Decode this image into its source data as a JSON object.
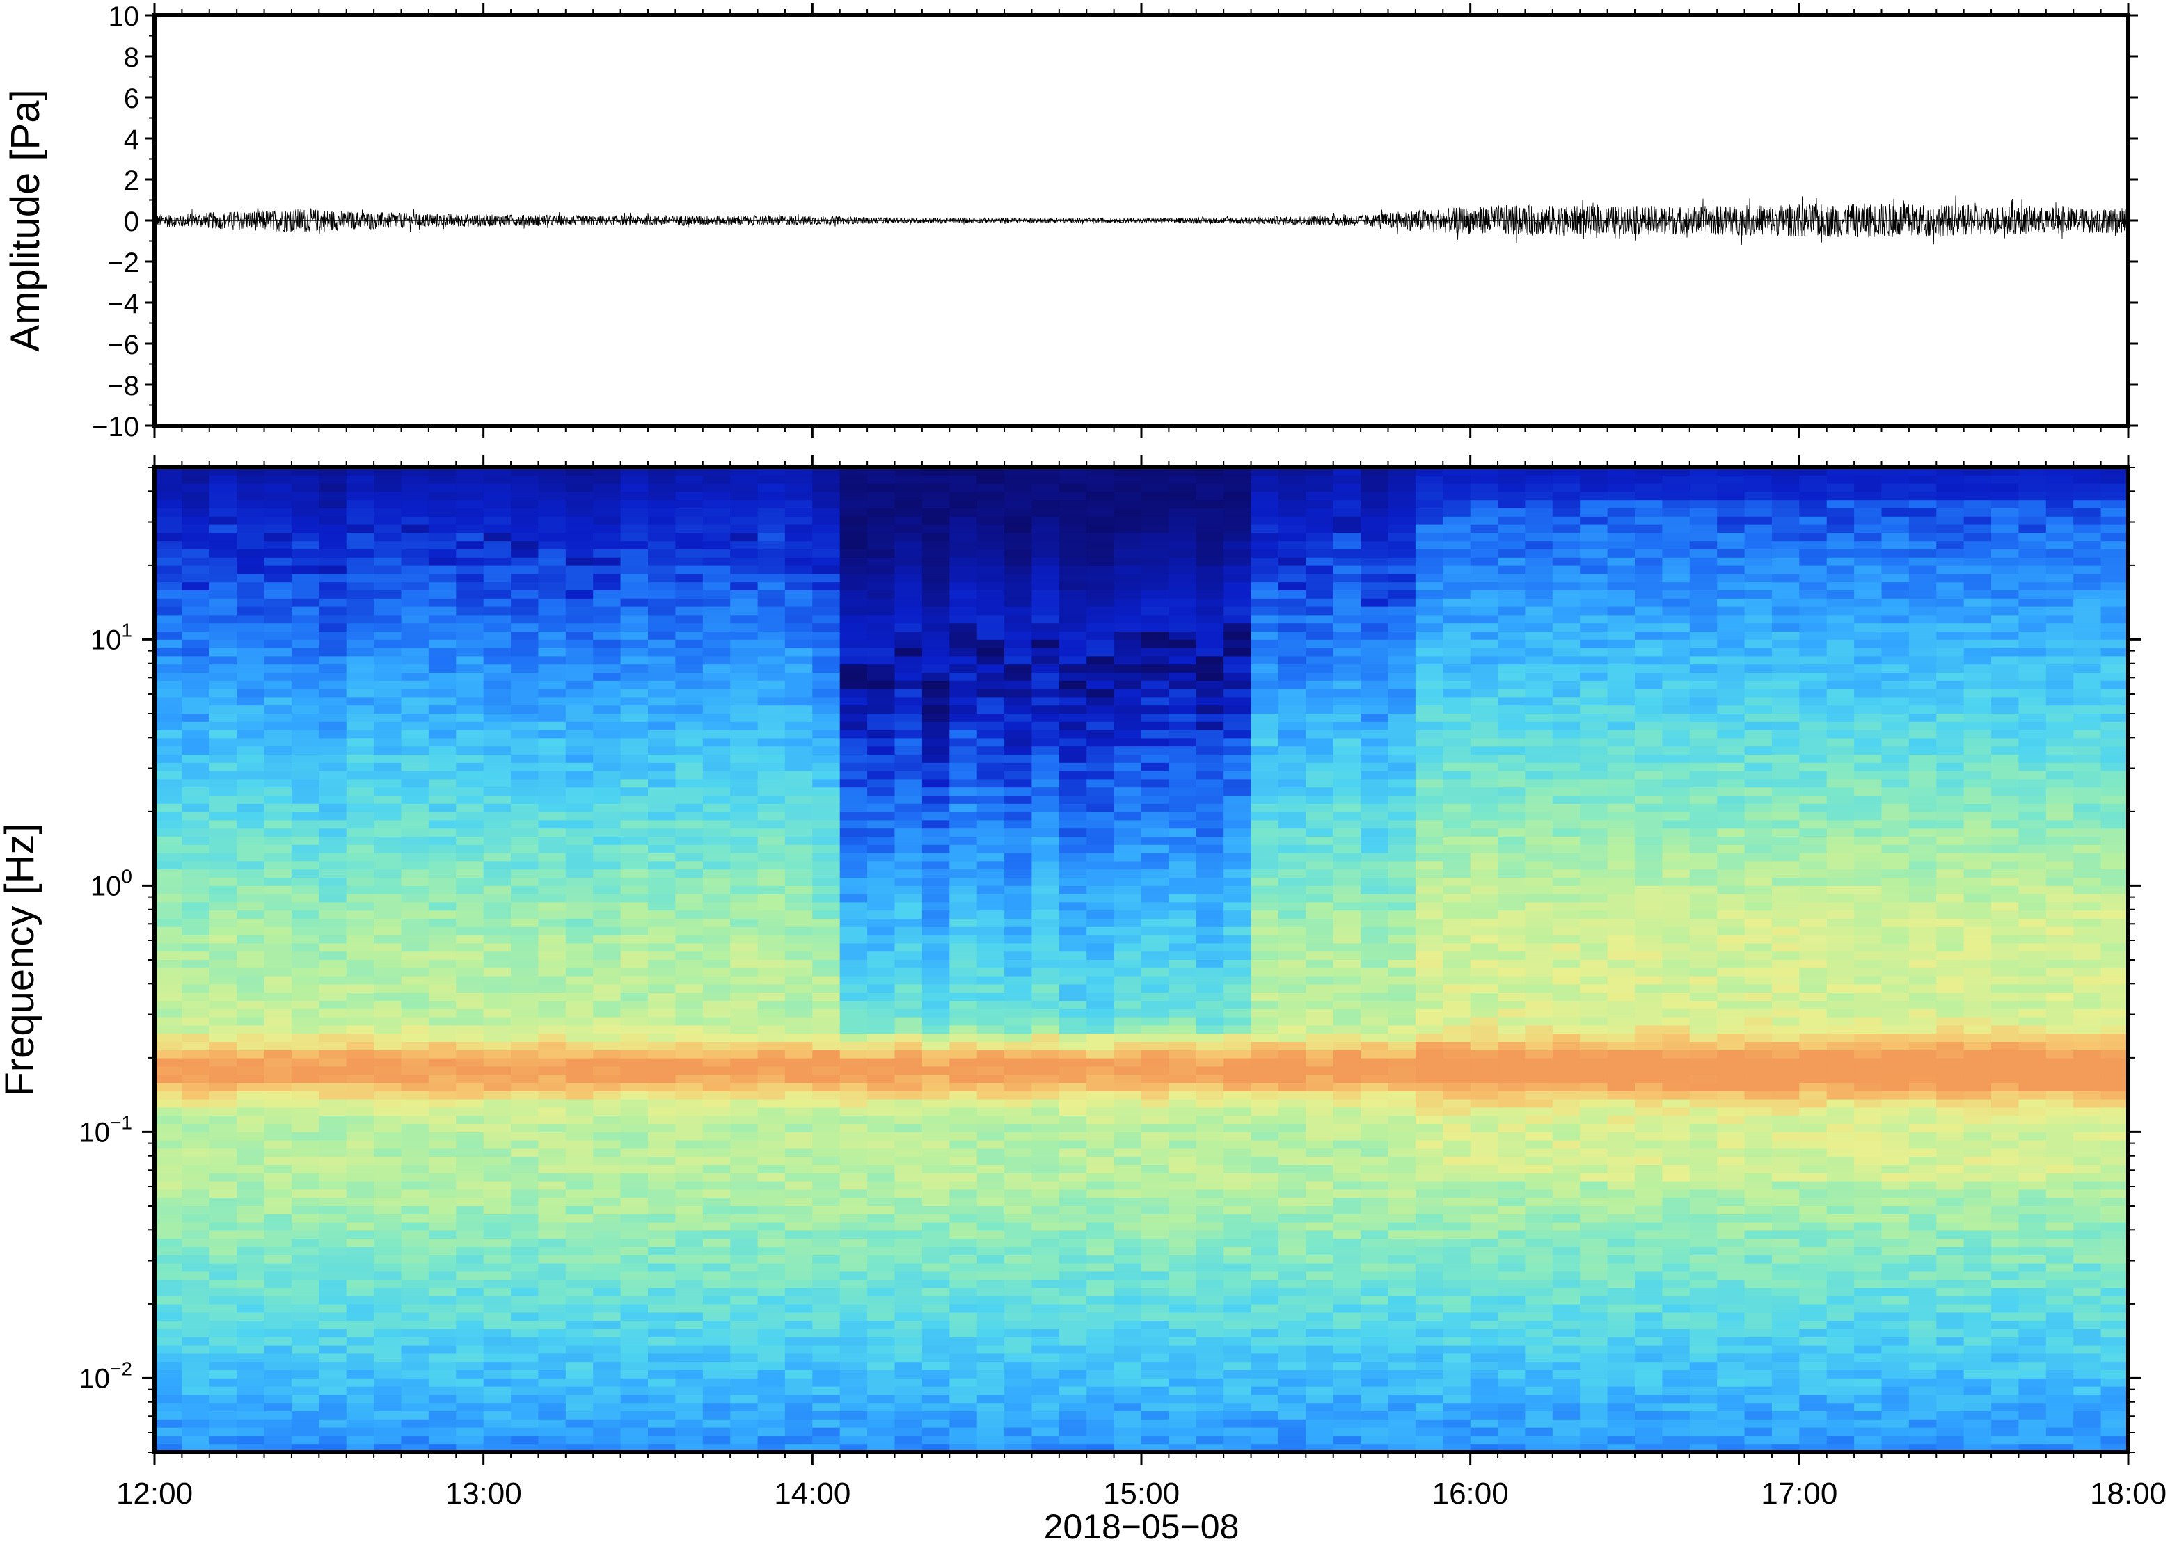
{
  "chart_data": [
    {
      "type": "line",
      "name": "waveform",
      "ylabel": "Amplitude [Pa]",
      "xlabel": "",
      "xlim": [
        "12:00",
        "18:00"
      ],
      "ylim": [
        -10,
        10
      ],
      "y_ticks": [
        10,
        8,
        6,
        4,
        2,
        0,
        -2,
        -4,
        -6,
        -8,
        -10
      ],
      "y_tick_labels": [
        "10",
        "8",
        "6",
        "4",
        "2",
        "0",
        "−2",
        "−4",
        "−6",
        "−8",
        "−10"
      ],
      "line_color": "#000000",
      "envelope": {
        "x_hours": [
          12.0,
          12.25,
          12.45,
          12.6,
          12.8,
          13.0,
          13.3,
          13.6,
          13.9,
          14.2,
          14.5,
          14.8,
          15.1,
          15.4,
          15.7,
          15.85,
          16.1,
          16.4,
          16.7,
          17.0,
          17.3,
          17.5,
          17.75,
          18.0
        ],
        "amplitude_pa": [
          0.3,
          0.45,
          0.6,
          0.45,
          0.35,
          0.3,
          0.25,
          0.25,
          0.25,
          0.15,
          0.12,
          0.12,
          0.12,
          0.2,
          0.3,
          0.55,
          0.75,
          0.7,
          0.7,
          0.8,
          0.85,
          0.75,
          0.65,
          0.6
        ]
      },
      "grid": false
    },
    {
      "type": "heatmap",
      "name": "spectrogram",
      "ylabel": "Frequency [Hz]",
      "xlabel": "2018−05−08",
      "xlim": [
        "12:00",
        "18:00"
      ],
      "ylim_hz": [
        0.005,
        50
      ],
      "y_scale": "log",
      "y_tick_labels": [
        {
          "base": "10",
          "exp": "1",
          "value": 10
        },
        {
          "base": "10",
          "exp": "0",
          "value": 1
        },
        {
          "base": "10",
          "exp": "−1",
          "value": 0.1
        },
        {
          "base": "10",
          "exp": "−2",
          "value": 0.01
        }
      ],
      "colormap": [
        "#0b0b6e",
        "#0a1fc8",
        "#1e6ff5",
        "#33a8ff",
        "#4fd4f0",
        "#7fe8c7",
        "#b8f0a0",
        "#e8f08f",
        "#f6c66f",
        "#f39b58"
      ],
      "features": {
        "microseism_peak_hz": 0.18,
        "quiet_band_hours": [
          14.1,
          15.3
        ],
        "noisy_band_hours": [
          15.8,
          18.0
        ]
      },
      "grid": false
    }
  ],
  "x_tick_labels": [
    "12:00",
    "13:00",
    "14:00",
    "15:00",
    "16:00",
    "17:00",
    "18:00"
  ],
  "date_label": "2018−05−08"
}
